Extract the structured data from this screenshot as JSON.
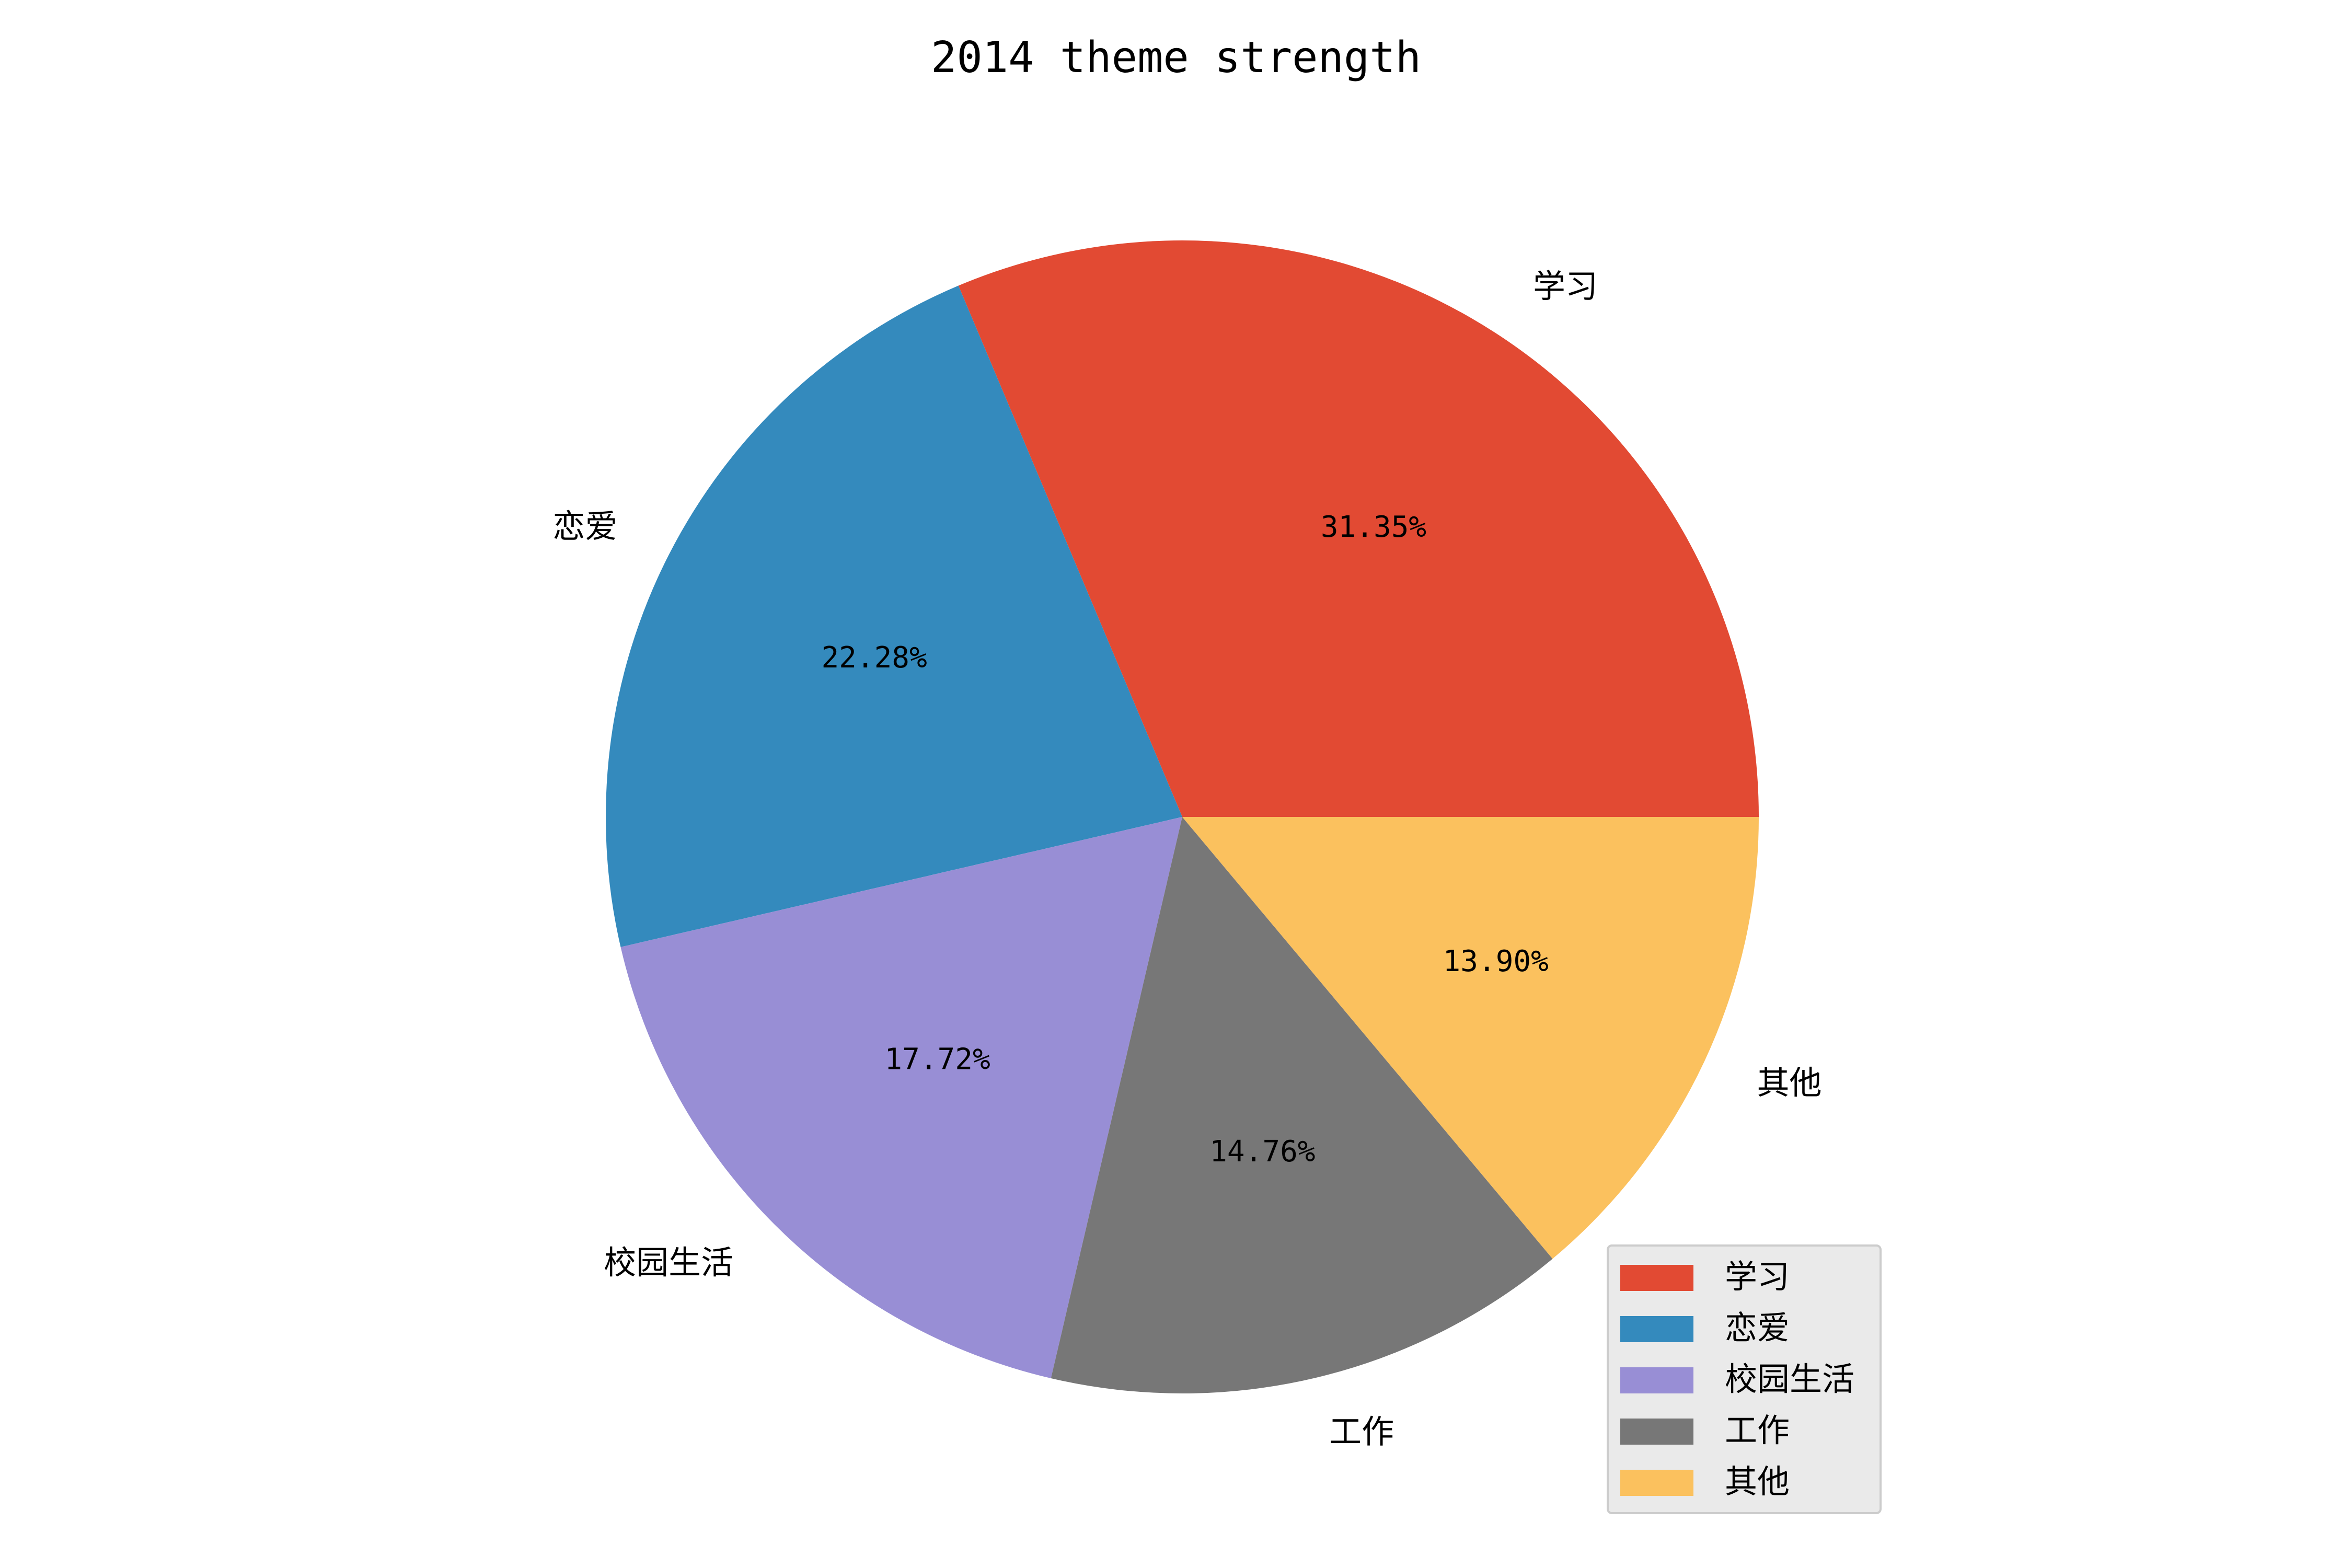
{
  "chart_data": {
    "type": "pie",
    "title": "2014 theme strength",
    "categories": [
      "学习",
      "恋爱",
      "校园生活",
      "工作",
      "其他"
    ],
    "values": [
      31.35,
      22.28,
      17.72,
      14.76,
      13.9
    ],
    "value_labels": [
      "31.35%",
      "22.28%",
      "17.72%",
      "14.76%",
      "13.90%"
    ],
    "colors": [
      "#E24A33",
      "#348ABD",
      "#988ED5",
      "#777777",
      "#FBC15E"
    ],
    "legend_position": "bottom-right"
  }
}
